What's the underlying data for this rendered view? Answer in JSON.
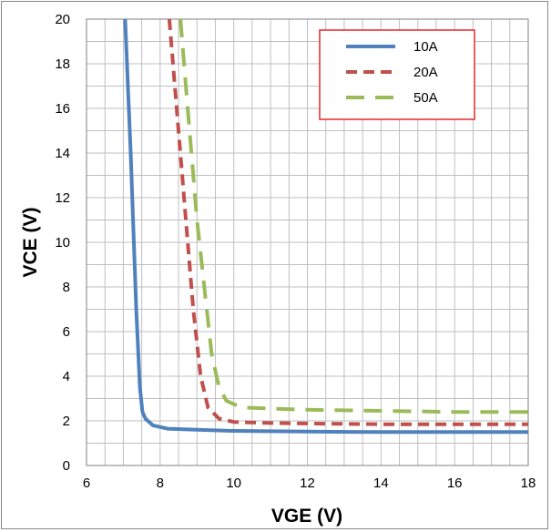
{
  "chart_data": {
    "type": "line",
    "title": "",
    "xlabel": "VGE  (V)",
    "ylabel": "VCE  (V)",
    "xlim": [
      6,
      18
    ],
    "ylim": [
      0,
      20
    ],
    "x_ticks": [
      6,
      8,
      10,
      12,
      14,
      16,
      18
    ],
    "y_ticks": [
      0,
      2,
      4,
      6,
      8,
      10,
      12,
      14,
      16,
      18,
      20
    ],
    "grid": true,
    "legend_position": "top-right",
    "series": [
      {
        "name": "10A",
        "color": "#4f81bd",
        "style": "solid",
        "x": [
          7.05,
          7.2,
          7.35,
          7.45,
          7.52,
          7.6,
          7.8,
          8.2,
          9.0,
          10.0,
          12.0,
          14.0,
          16.0,
          18.0
        ],
        "y": [
          20,
          14,
          7,
          3.5,
          2.4,
          2.1,
          1.8,
          1.65,
          1.6,
          1.55,
          1.52,
          1.5,
          1.5,
          1.5
        ]
      },
      {
        "name": "20A",
        "color": "#c0504d",
        "style": "dashed",
        "x": [
          8.25,
          8.45,
          8.7,
          8.9,
          9.1,
          9.3,
          9.6,
          10.0,
          11.0,
          12.0,
          14.0,
          16.0,
          18.0
        ],
        "y": [
          20,
          16,
          11,
          7,
          4,
          2.6,
          2.1,
          1.95,
          1.9,
          1.88,
          1.85,
          1.85,
          1.85
        ]
      },
      {
        "name": "50A",
        "color": "#9bbb59",
        "style": "dashed",
        "x": [
          8.55,
          8.75,
          9.0,
          9.2,
          9.4,
          9.6,
          9.8,
          10.2,
          11.0,
          12.0,
          14.0,
          16.0,
          18.0
        ],
        "y": [
          20,
          16,
          11,
          8,
          5,
          3.5,
          2.9,
          2.6,
          2.55,
          2.5,
          2.45,
          2.4,
          2.4
        ]
      }
    ]
  }
}
